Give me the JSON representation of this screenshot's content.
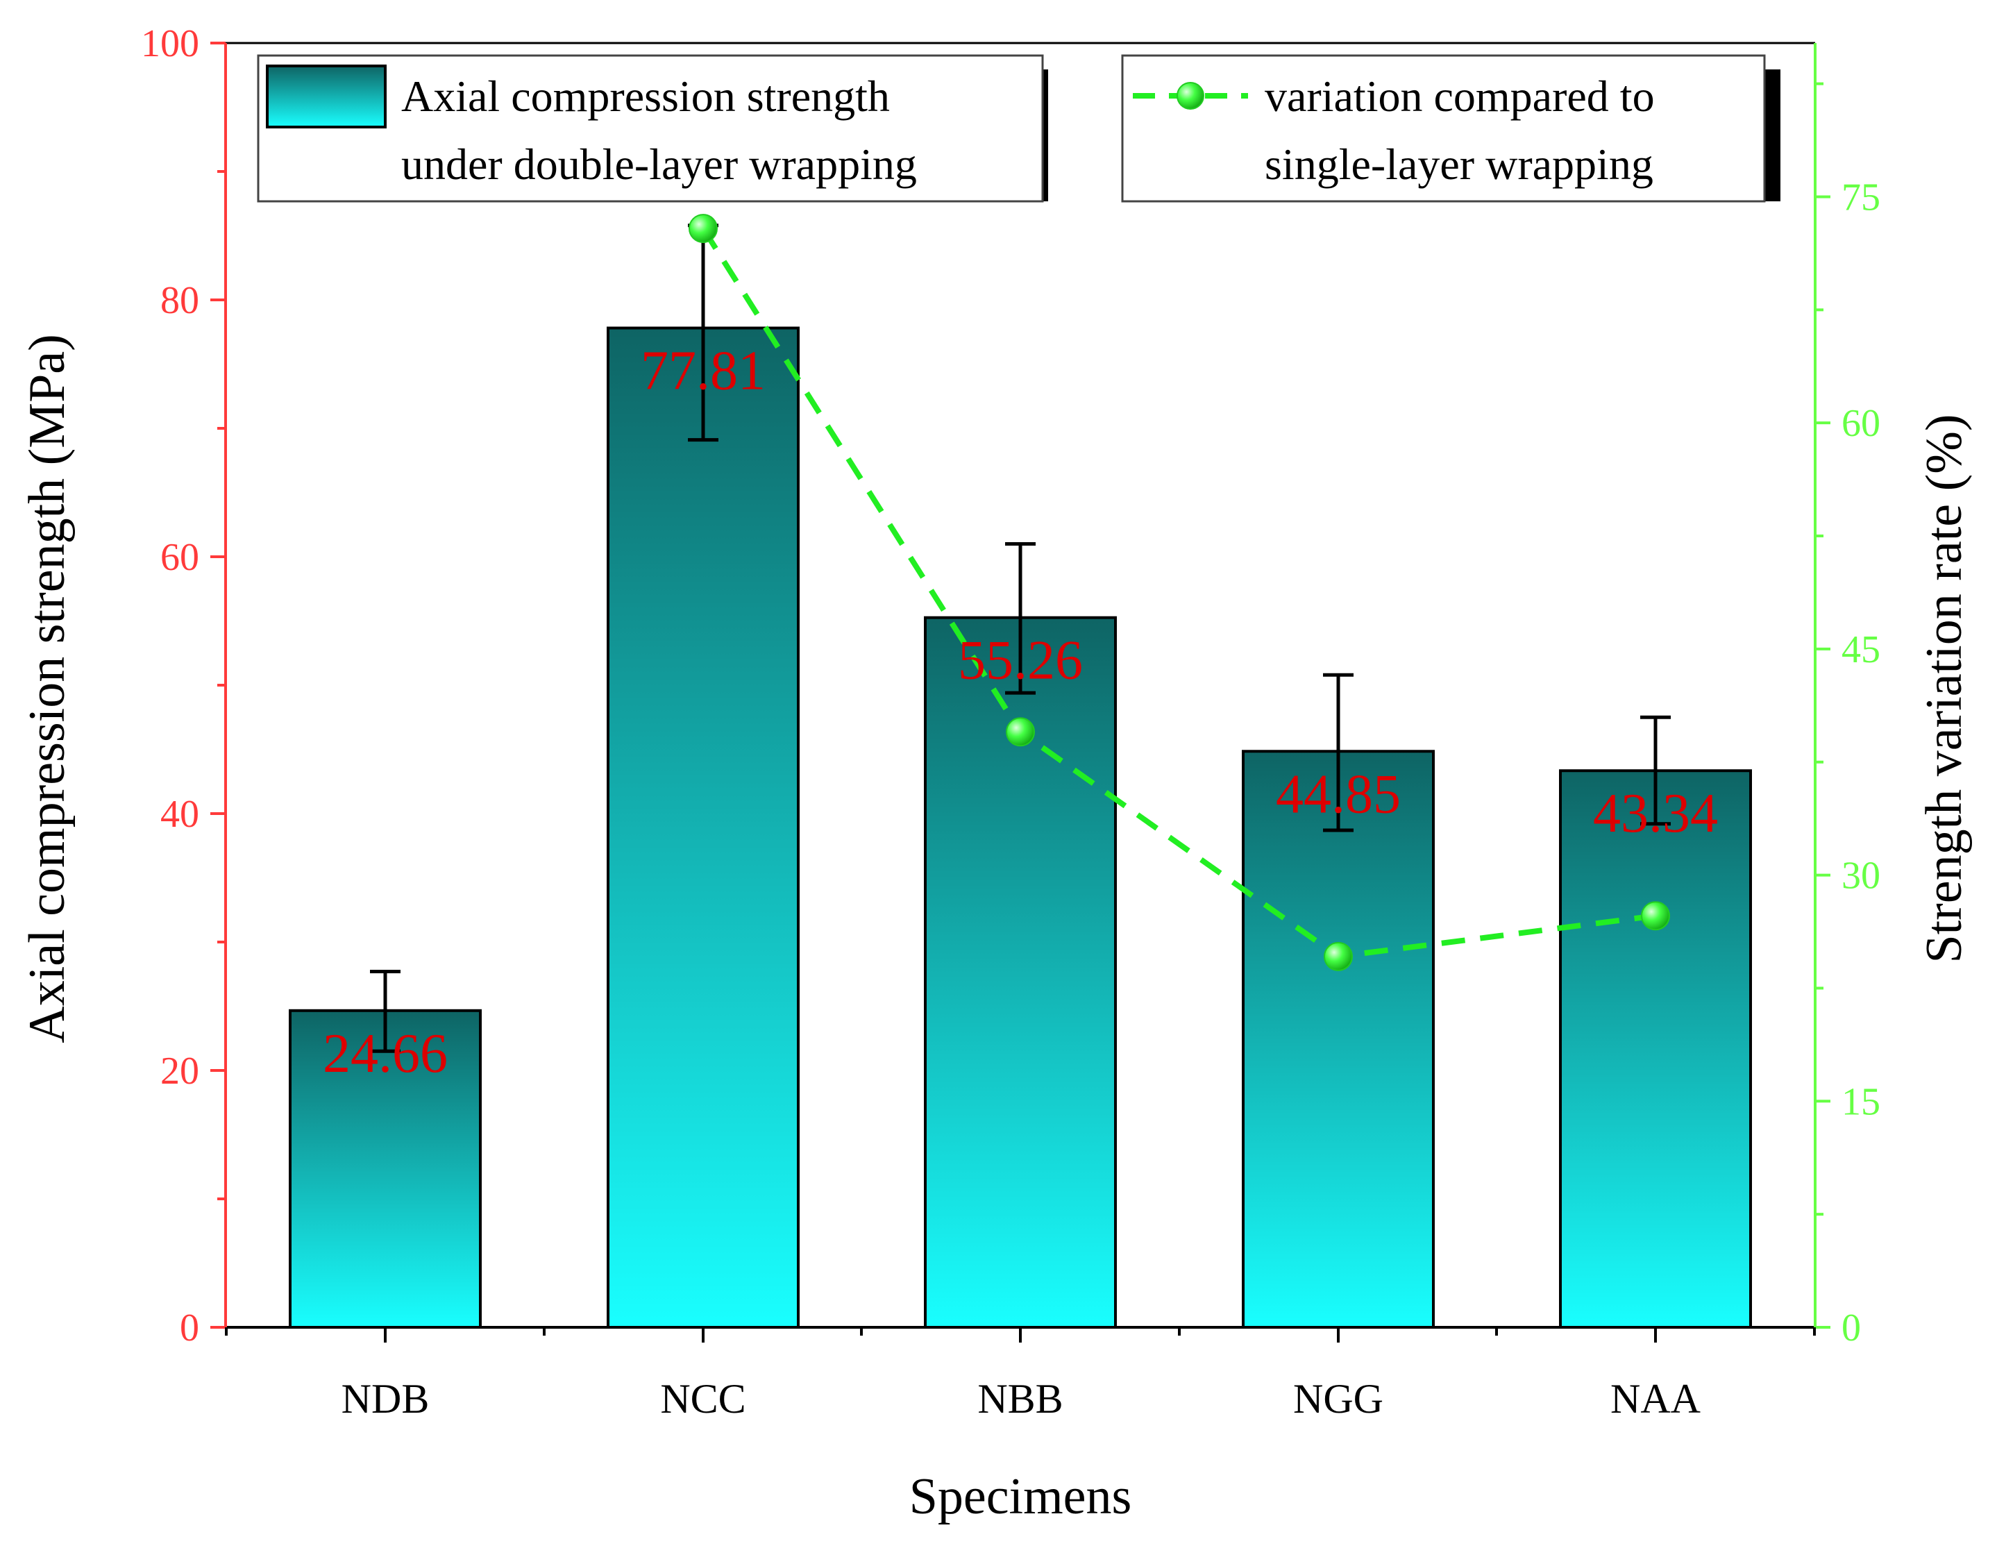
{
  "chart_data": {
    "type": "bar",
    "categories": [
      "NDB",
      "NCC",
      "NBB",
      "NGG",
      "NAA"
    ],
    "xlabel": "Specimens",
    "ylabel_left": "Axial compression strength (MPa)",
    "ylabel_right": "Strength variation rate (%)",
    "ylim_left": [
      0,
      100
    ],
    "ylim_right": [
      0,
      85.2
    ],
    "yticks_left": [
      "0",
      "20",
      "40",
      "60",
      "80",
      "100"
    ],
    "yticks_right": [
      "0",
      "15",
      "30",
      "45",
      "60",
      "75"
    ],
    "bars": {
      "name": "Axial compression strength under double-layer wrapping",
      "legend_lines": [
        "Axial compression strength",
        "under double-layer wrapping"
      ],
      "values": [
        24.66,
        77.81,
        55.26,
        44.85,
        43.34
      ],
      "labels": [
        "24.66",
        "77.81",
        "55.26",
        "44.85",
        "43.34"
      ],
      "error_upper": [
        27.7,
        85.8,
        61.0,
        50.8,
        47.5
      ],
      "error_lower": [
        21.5,
        69.1,
        49.4,
        38.7,
        39.2
      ]
    },
    "line": {
      "name": "variation compared to single-layer wrapping",
      "legend_lines": [
        "variation compared to",
        "single-layer wrapping"
      ],
      "values": [
        72.9,
        39.5,
        24.6,
        27.3
      ]
    },
    "colors": {
      "bar_top": "#0e6464",
      "bar_bottom": "#19ffff",
      "left_axis": "#ff3a3a",
      "right_axis": "#66ff44",
      "data_label": "#dd0000",
      "line": "#22ee22",
      "marker": "#33ee33"
    }
  }
}
